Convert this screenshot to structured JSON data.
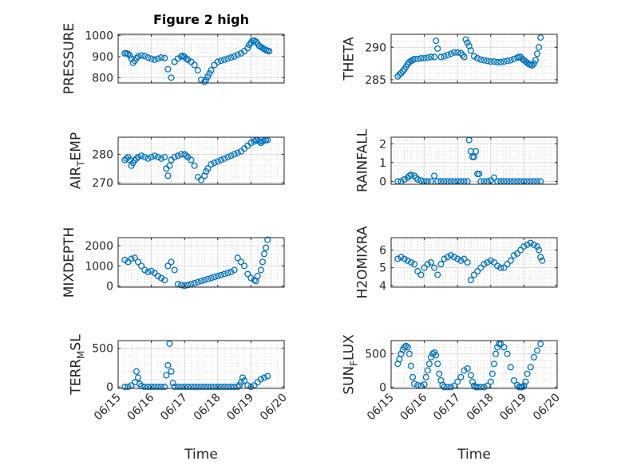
{
  "figure": {
    "title": "Figure 2 high",
    "x_axis_label": "Time",
    "x_tick_labels": [
      "06/15",
      "06/16",
      "06/17",
      "06/18",
      "06/19",
      "06/20"
    ],
    "marker_color": "#0072BD",
    "marker": "open-circle",
    "background": "#ffffff"
  },
  "chart_data": [
    {
      "type": "scatter",
      "name": "PRESSURE",
      "ylabel": "PRESSURE",
      "ylim": [
        775,
        1005
      ],
      "yticks": [
        800,
        900,
        1000
      ],
      "grid": "on",
      "x": [
        0.2,
        0.25,
        0.3,
        0.35,
        0.4,
        0.45,
        0.5,
        0.55,
        0.6,
        0.7,
        0.8,
        0.9,
        1.0,
        1.1,
        1.2,
        1.3,
        1.4,
        1.5,
        1.6,
        1.7,
        1.8,
        1.9,
        1.95,
        2.0,
        2.05,
        2.1,
        2.2,
        2.3,
        2.4,
        2.5,
        2.6,
        2.65,
        2.7,
        2.75,
        2.8,
        2.9,
        3.0,
        3.1,
        3.2,
        3.3,
        3.4,
        3.5,
        3.6,
        3.7,
        3.8,
        3.9,
        3.95,
        4.0,
        4.05,
        4.1,
        4.15,
        4.2,
        4.25,
        4.3,
        4.35,
        4.4,
        4.45,
        4.5,
        4.55
      ],
      "y": [
        915,
        915,
        912,
        905,
        890,
        870,
        880,
        892,
        900,
        905,
        902,
        895,
        890,
        885,
        890,
        895,
        892,
        840,
        800,
        875,
        890,
        900,
        903,
        898,
        890,
        885,
        875,
        860,
        835,
        790,
        780,
        790,
        805,
        820,
        835,
        860,
        875,
        880,
        885,
        890,
        895,
        900,
        908,
        915,
        925,
        940,
        955,
        965,
        975,
        975,
        970,
        960,
        950,
        945,
        940,
        935,
        930,
        928,
        925
      ]
    },
    {
      "type": "scatter",
      "name": "THETA",
      "ylabel": "THETA",
      "ylim": [
        284.5,
        292
      ],
      "yticks": [
        285,
        290
      ],
      "grid": "on",
      "x": [
        0.2,
        0.25,
        0.3,
        0.35,
        0.4,
        0.45,
        0.5,
        0.55,
        0.6,
        0.65,
        0.7,
        0.8,
        0.9,
        1.0,
        1.1,
        1.2,
        1.3,
        1.35,
        1.4,
        1.5,
        1.6,
        1.7,
        1.8,
        1.9,
        2.0,
        2.1,
        2.15,
        2.2,
        2.25,
        2.3,
        2.35,
        2.4,
        2.5,
        2.6,
        2.7,
        2.8,
        2.9,
        3.0,
        3.1,
        3.2,
        3.3,
        3.4,
        3.5,
        3.6,
        3.7,
        3.8,
        3.85,
        3.9,
        3.95,
        4.0,
        4.05,
        4.1,
        4.15,
        4.2,
        4.25,
        4.3,
        4.35,
        4.4,
        4.45,
        4.5
      ],
      "y": [
        285.5,
        285.8,
        286.0,
        286.3,
        286.6,
        287.0,
        287.4,
        287.7,
        287.9,
        288.0,
        288.2,
        288.2,
        288.3,
        288.3,
        288.4,
        288.5,
        288.5,
        291.0,
        289.8,
        288.5,
        288.6,
        288.8,
        289.0,
        289.2,
        289.2,
        289.1,
        288.8,
        288.5,
        291.2,
        290.7,
        290.2,
        289.5,
        288.6,
        288.3,
        288.1,
        288.0,
        287.9,
        287.8,
        287.8,
        287.7,
        287.7,
        287.8,
        287.9,
        288.0,
        288.2,
        288.4,
        288.5,
        288.5,
        288.2,
        288.0,
        287.8,
        287.6,
        287.4,
        287.3,
        287.2,
        287.5,
        288.0,
        289.0,
        290.0,
        291.5
      ]
    },
    {
      "type": "scatter",
      "name": "AIR_TEMP",
      "ylabel": "AIR_TEMP",
      "ylim": [
        269.5,
        286
      ],
      "yticks": [
        270,
        280
      ],
      "grid": "on",
      "x": [
        0.2,
        0.25,
        0.3,
        0.35,
        0.4,
        0.45,
        0.5,
        0.55,
        0.6,
        0.7,
        0.8,
        0.9,
        1.0,
        1.1,
        1.2,
        1.3,
        1.4,
        1.45,
        1.5,
        1.55,
        1.6,
        1.7,
        1.8,
        1.9,
        2.0,
        2.05,
        2.1,
        2.2,
        2.3,
        2.4,
        2.5,
        2.6,
        2.65,
        2.7,
        2.8,
        2.9,
        3.0,
        3.1,
        3.2,
        3.3,
        3.4,
        3.5,
        3.6,
        3.7,
        3.8,
        3.9,
        4.0,
        4.1,
        4.15,
        4.2,
        4.25,
        4.3,
        4.35,
        4.4,
        4.45,
        4.5
      ],
      "y": [
        278,
        278.5,
        279,
        278,
        276,
        277,
        278,
        278.5,
        279,
        279.5,
        279,
        278.5,
        279,
        279.5,
        279,
        278.5,
        279,
        275,
        272.5,
        276,
        278,
        279,
        279.5,
        280,
        280,
        279.5,
        279,
        278,
        276,
        272,
        271,
        272.5,
        274,
        275,
        276.5,
        277,
        277.5,
        278,
        278.5,
        279,
        279.5,
        280,
        280.5,
        281,
        282,
        283,
        284,
        284.5,
        285,
        285,
        284.5,
        284,
        284.5,
        284.8,
        285,
        285
      ]
    },
    {
      "type": "scatter",
      "name": "RAINFALL",
      "ylabel": "RAINFALL",
      "ylim": [
        -0.15,
        2.35
      ],
      "yticks": [
        0,
        1,
        2
      ],
      "grid": "on",
      "x": [
        0.2,
        0.3,
        0.4,
        0.5,
        0.55,
        0.6,
        0.7,
        0.75,
        0.8,
        0.9,
        1.0,
        1.1,
        1.2,
        1.3,
        1.4,
        1.5,
        1.6,
        1.7,
        1.8,
        1.9,
        2.0,
        2.1,
        2.2,
        2.3,
        2.35,
        2.4,
        2.45,
        2.5,
        2.55,
        2.6,
        2.65,
        2.7,
        2.8,
        2.9,
        3.0,
        3.1,
        3.2,
        3.3,
        3.4,
        3.5,
        3.6,
        3.7,
        3.8,
        3.9,
        4.0,
        4.1,
        4.2,
        4.3,
        4.4,
        4.5
      ],
      "y": [
        0,
        0,
        0.1,
        0.2,
        0.3,
        0.35,
        0.3,
        0.2,
        0.1,
        0.05,
        0,
        0,
        0,
        0.3,
        0,
        0,
        0,
        0,
        0,
        0,
        0,
        0,
        0,
        0,
        2.2,
        1.6,
        1.3,
        1.3,
        1.6,
        0.4,
        0.4,
        0,
        0,
        0,
        0.05,
        0.2,
        0,
        0,
        0,
        0,
        0,
        0,
        0,
        0,
        0,
        0,
        0,
        0,
        0,
        0
      ]
    },
    {
      "type": "scatter",
      "name": "MIXDEPTH",
      "ylabel": "MIXDEPTH",
      "ylim": [
        -50,
        2400
      ],
      "yticks": [
        0,
        1000,
        2000
      ],
      "grid": "on",
      "x": [
        0.2,
        0.3,
        0.4,
        0.5,
        0.6,
        0.7,
        0.8,
        0.9,
        1.0,
        1.1,
        1.2,
        1.3,
        1.4,
        1.5,
        1.6,
        1.7,
        1.8,
        1.9,
        2.0,
        2.1,
        2.2,
        2.3,
        2.4,
        2.5,
        2.6,
        2.7,
        2.8,
        2.9,
        3.0,
        3.1,
        3.2,
        3.3,
        3.4,
        3.5,
        3.6,
        3.7,
        3.8,
        3.9,
        4.0,
        4.1,
        4.15,
        4.2,
        4.3,
        4.35,
        4.4,
        4.45,
        4.5
      ],
      "y": [
        1300,
        1200,
        1350,
        1400,
        1200,
        1000,
        800,
        700,
        750,
        650,
        500,
        400,
        300,
        1000,
        1200,
        800,
        100,
        50,
        20,
        50,
        100,
        150,
        200,
        250,
        300,
        350,
        400,
        450,
        500,
        550,
        600,
        650,
        700,
        800,
        1400,
        1200,
        1000,
        600,
        400,
        300,
        250,
        500,
        800,
        1200,
        1600,
        1900,
        2300
      ]
    },
    {
      "type": "scatter",
      "name": "H2OMIXRA",
      "ylabel": "H2OMIXRA",
      "ylim": [
        3.9,
        6.7
      ],
      "yticks": [
        4,
        5,
        6
      ],
      "grid": "on",
      "x": [
        0.2,
        0.3,
        0.4,
        0.5,
        0.6,
        0.7,
        0.8,
        0.9,
        1.0,
        1.1,
        1.2,
        1.3,
        1.4,
        1.5,
        1.6,
        1.7,
        1.8,
        1.9,
        2.0,
        2.1,
        2.2,
        2.3,
        2.4,
        2.5,
        2.6,
        2.7,
        2.8,
        2.9,
        3.0,
        3.1,
        3.2,
        3.3,
        3.4,
        3.5,
        3.6,
        3.7,
        3.8,
        3.9,
        4.0,
        4.1,
        4.2,
        4.3,
        4.4,
        4.45,
        4.5,
        4.55
      ],
      "y": [
        5.5,
        5.6,
        5.5,
        5.4,
        5.3,
        5.2,
        4.8,
        4.6,
        5.0,
        5.2,
        5.3,
        5.0,
        4.6,
        5.2,
        5.5,
        5.6,
        5.7,
        5.6,
        5.5,
        5.4,
        5.5,
        5.3,
        4.3,
        4.6,
        4.8,
        5.0,
        5.2,
        5.3,
        5.4,
        5.3,
        5.1,
        5.0,
        5.0,
        5.2,
        5.4,
        5.7,
        5.8,
        6.0,
        6.2,
        6.3,
        6.4,
        6.3,
        6.2,
        6.0,
        5.6,
        5.4
      ]
    },
    {
      "type": "scatter",
      "name": "TERR_MSL",
      "ylabel": "TERR_MSL",
      "ylim": [
        -20,
        600
      ],
      "yticks": [
        0,
        500
      ],
      "grid": "on",
      "x": [
        0.2,
        0.3,
        0.4,
        0.5,
        0.55,
        0.6,
        0.65,
        0.7,
        0.8,
        0.9,
        1.0,
        1.1,
        1.2,
        1.3,
        1.4,
        1.45,
        1.5,
        1.55,
        1.6,
        1.65,
        1.7,
        1.8,
        1.9,
        2.0,
        2.1,
        2.2,
        2.3,
        2.4,
        2.5,
        2.6,
        2.7,
        2.8,
        2.9,
        3.0,
        3.1,
        3.2,
        3.3,
        3.4,
        3.5,
        3.6,
        3.65,
        3.7,
        3.75,
        3.8,
        3.9,
        4.0,
        4.1,
        4.2,
        4.3,
        4.4,
        4.5
      ],
      "y": [
        0,
        0,
        20,
        60,
        200,
        120,
        40,
        10,
        0,
        0,
        0,
        0,
        0,
        0,
        0,
        150,
        280,
        560,
        200,
        50,
        0,
        0,
        0,
        0,
        0,
        0,
        0,
        0,
        0,
        0,
        0,
        0,
        0,
        0,
        0,
        0,
        0,
        0,
        0,
        0,
        20,
        60,
        120,
        80,
        20,
        0,
        20,
        60,
        100,
        120,
        140
      ]
    },
    {
      "type": "scatter",
      "name": "SUN_FLUX",
      "ylabel": "SUN_FLUX",
      "ylim": [
        -20,
        700
      ],
      "yticks": [
        0,
        500
      ],
      "grid": "on",
      "x": [
        0.2,
        0.25,
        0.3,
        0.35,
        0.4,
        0.45,
        0.5,
        0.55,
        0.6,
        0.65,
        0.7,
        0.8,
        0.9,
        1.0,
        1.05,
        1.1,
        1.15,
        1.2,
        1.25,
        1.3,
        1.35,
        1.4,
        1.45,
        1.5,
        1.55,
        1.6,
        1.7,
        1.8,
        1.9,
        2.0,
        2.1,
        2.2,
        2.3,
        2.4,
        2.45,
        2.5,
        2.55,
        2.6,
        2.7,
        2.8,
        2.9,
        3.0,
        3.05,
        3.1,
        3.15,
        3.2,
        3.25,
        3.3,
        3.4,
        3.5,
        3.6,
        3.7,
        3.8,
        3.85,
        3.9,
        3.95,
        4.0,
        4.05,
        4.1,
        4.2,
        4.3,
        4.4,
        4.5
      ],
      "y": [
        350,
        420,
        500,
        560,
        600,
        620,
        600,
        500,
        320,
        150,
        50,
        30,
        20,
        40,
        150,
        250,
        350,
        450,
        500,
        520,
        480,
        350,
        200,
        100,
        30,
        0,
        0,
        0,
        20,
        80,
        150,
        250,
        280,
        180,
        80,
        20,
        0,
        0,
        0,
        0,
        20,
        80,
        200,
        350,
        500,
        600,
        650,
        650,
        600,
        500,
        300,
        100,
        30,
        0,
        0,
        0,
        20,
        80,
        200,
        300,
        450,
        550,
        650
      ]
    }
  ]
}
